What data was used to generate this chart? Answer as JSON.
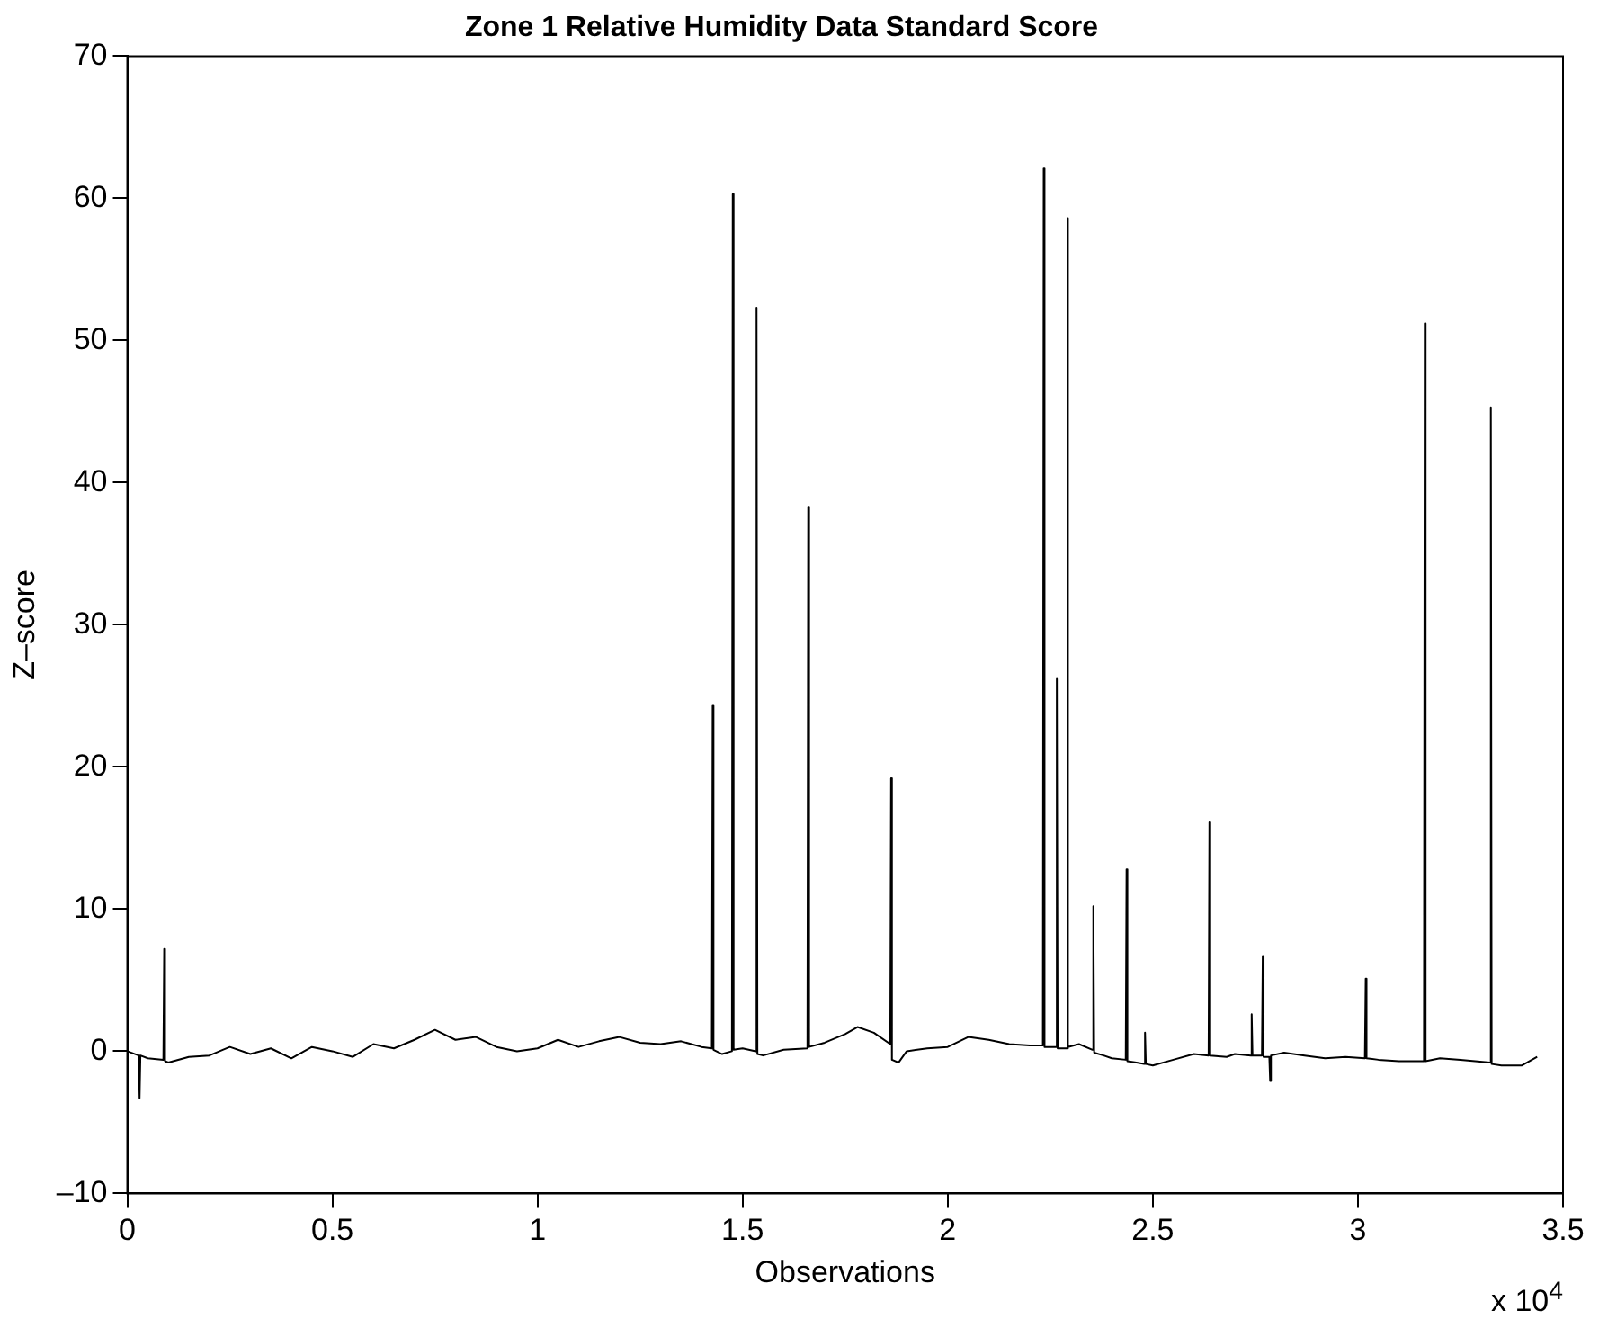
{
  "chart_data": {
    "type": "line",
    "title": "Zone 1 Relative Humidity Data Standard Score",
    "xlabel": "Observations",
    "ylabel": "Z–score",
    "annotations": [
      "x 10$^{4}$"
    ],
    "xlim": [
      0,
      3.5
    ],
    "xticks": [
      0,
      0.5,
      1,
      1.5,
      2,
      2.5,
      3,
      3.5
    ],
    "ylim": [
      -10,
      70
    ],
    "yticks": [
      {
        "value": -10,
        "label": "–10"
      },
      0,
      10,
      20,
      30,
      40,
      50,
      60,
      70
    ],
    "grid": false,
    "legend": false,
    "marker": "none",
    "line_style": "solid",
    "series": [
      {
        "color": "#000000",
        "x": [
          0,
          0.028,
          0.03,
          0.032,
          0.05,
          0.088,
          0.09,
          0.092,
          0.1,
          0.15,
          0.2,
          0.25,
          0.3,
          0.35,
          0.4,
          0.45,
          0.5,
          0.55,
          0.6,
          0.65,
          0.7,
          0.75,
          0.8,
          0.85,
          0.9,
          0.95,
          1,
          1.05,
          1.1,
          1.15,
          1.2,
          1.25,
          1.3,
          1.35,
          1.4,
          1.425,
          1.427,
          1.429,
          1.45,
          1.474,
          1.476,
          1.478,
          1.5,
          1.532,
          1.534,
          1.536,
          1.55,
          1.6,
          1.658,
          1.66,
          1.662,
          1.7,
          1.75,
          1.78,
          1.82,
          1.86,
          1.862,
          1.864,
          1.88,
          1.9,
          1.95,
          2,
          2.05,
          2.1,
          2.15,
          2.2,
          2.232,
          2.234,
          2.236,
          2.264,
          2.266,
          2.268,
          2.29,
          2.292,
          2.294,
          2.32,
          2.353,
          2.355,
          2.357,
          2.38,
          2.4,
          2.434,
          2.436,
          2.438,
          2.46,
          2.479,
          2.481,
          2.483,
          2.5,
          2.55,
          2.6,
          2.636,
          2.638,
          2.64,
          2.68,
          2.7,
          2.739,
          2.741,
          2.743,
          2.766,
          2.768,
          2.77,
          2.784,
          2.786,
          2.788,
          2.82,
          2.87,
          2.92,
          2.97,
          3.017,
          3.019,
          3.021,
          3.05,
          3.1,
          3.161,
          3.163,
          3.165,
          3.2,
          3.25,
          3.322,
          3.324,
          3.326,
          3.35,
          3.4,
          3.437
        ],
        "values": [
          0,
          -0.3,
          -3.3,
          -0.3,
          -0.5,
          -0.6,
          7.2,
          -0.7,
          -0.8,
          -0.4,
          -0.3,
          0.3,
          -0.2,
          0.2,
          -0.5,
          0.3,
          0,
          -0.4,
          0.5,
          0.2,
          0.8,
          1.5,
          0.8,
          1,
          0.3,
          0,
          0.2,
          0.8,
          0.3,
          0.7,
          1,
          0.6,
          0.5,
          0.7,
          0.3,
          0.2,
          24.3,
          0.1,
          -0.2,
          0,
          60.3,
          0.1,
          0.2,
          0,
          52.3,
          -0.2,
          -0.3,
          0.1,
          0.2,
          38.3,
          0.3,
          0.6,
          1.2,
          1.7,
          1.3,
          0.5,
          19.2,
          -0.6,
          -0.8,
          0,
          0.2,
          0.3,
          1,
          0.8,
          0.5,
          0.4,
          0.4,
          62.1,
          0.3,
          0.3,
          26.2,
          0.2,
          0.2,
          58.6,
          0.3,
          0.5,
          0.1,
          10.2,
          -0.1,
          -0.3,
          -0.5,
          -0.6,
          12.8,
          -0.7,
          -0.8,
          -0.9,
          1.3,
          -0.9,
          -1,
          -0.6,
          -0.2,
          -0.3,
          16.1,
          -0.3,
          -0.4,
          -0.2,
          -0.3,
          2.6,
          -0.3,
          -0.3,
          6.7,
          -0.4,
          -0.4,
          -2.1,
          -0.3,
          -0.1,
          -0.3,
          -0.5,
          -0.4,
          -0.5,
          5.1,
          -0.5,
          -0.6,
          -0.7,
          -0.7,
          51.2,
          -0.7,
          -0.5,
          -0.6,
          -0.8,
          45.3,
          -0.9,
          -1,
          -1,
          -0.4
        ]
      }
    ]
  }
}
